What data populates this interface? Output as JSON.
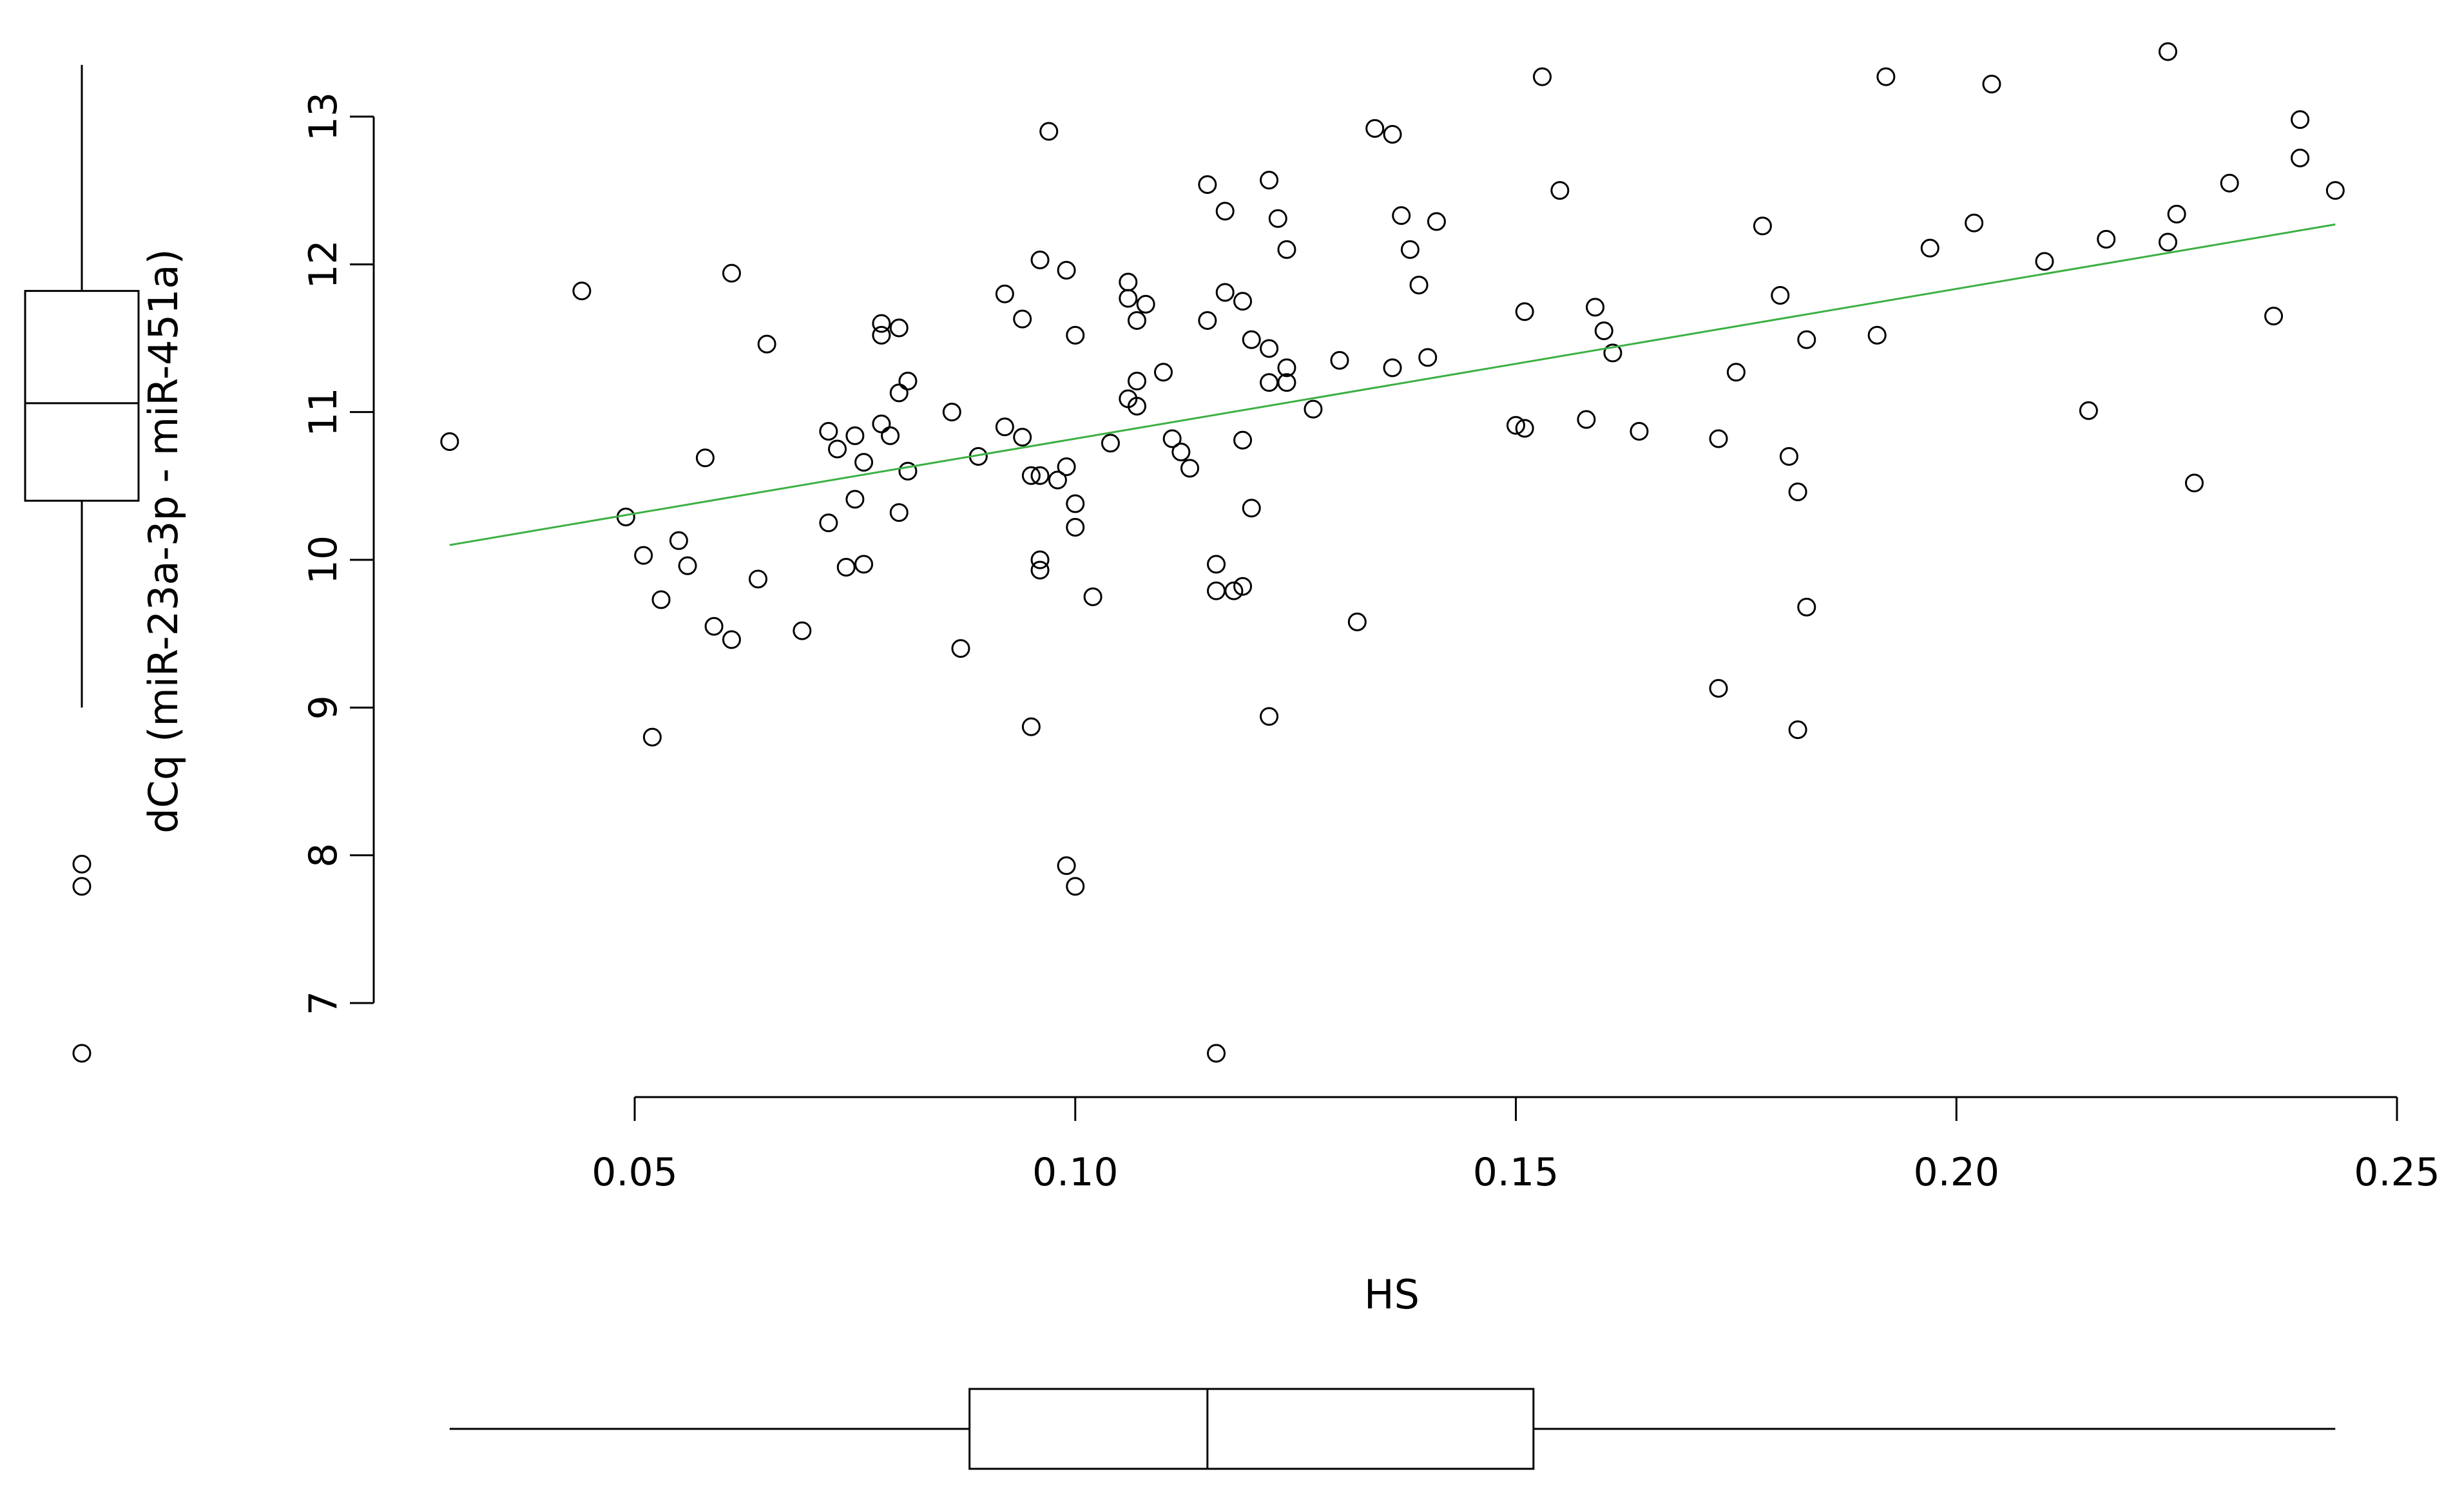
{
  "chart_data": {
    "type": "scatter",
    "xlabel": "HS",
    "ylabel": "dCq (miR-23a-3p - miR-451a)",
    "xlim": [
      0.03,
      0.245
    ],
    "ylim": [
      7,
      13.45
    ],
    "x_ticks": [
      0.05,
      0.1,
      0.15,
      0.2,
      0.25
    ],
    "x_tick_labels": [
      "0.05",
      "0.10",
      "0.15",
      "0.20",
      "0.25"
    ],
    "y_ticks": [
      7,
      8,
      9,
      10,
      11,
      12,
      13
    ],
    "y_tick_labels": [
      "7",
      "8",
      "9",
      "10",
      "11",
      "12",
      "13"
    ],
    "grid": false,
    "colors": {
      "points": "#000000",
      "fit_line": "#3cb043",
      "boxplot": "#000000"
    },
    "fit_line": {
      "x": [
        0.029,
        0.243
      ],
      "y": [
        10.1,
        12.27
      ]
    },
    "points": [
      {
        "x": 0.029,
        "y": 10.8
      },
      {
        "x": 0.044,
        "y": 11.82
      },
      {
        "x": 0.049,
        "y": 10.29
      },
      {
        "x": 0.051,
        "y": 10.03
      },
      {
        "x": 0.052,
        "y": 8.8
      },
      {
        "x": 0.053,
        "y": 9.73
      },
      {
        "x": 0.055,
        "y": 10.13
      },
      {
        "x": 0.056,
        "y": 9.96
      },
      {
        "x": 0.058,
        "y": 10.69
      },
      {
        "x": 0.059,
        "y": 9.55
      },
      {
        "x": 0.061,
        "y": 9.46
      },
      {
        "x": 0.061,
        "y": 11.94
      },
      {
        "x": 0.064,
        "y": 9.87
      },
      {
        "x": 0.065,
        "y": 11.46
      },
      {
        "x": 0.069,
        "y": 9.52
      },
      {
        "x": 0.072,
        "y": 10.87
      },
      {
        "x": 0.072,
        "y": 10.25
      },
      {
        "x": 0.073,
        "y": 10.75
      },
      {
        "x": 0.074,
        "y": 9.95
      },
      {
        "x": 0.075,
        "y": 10.41
      },
      {
        "x": 0.075,
        "y": 10.84
      },
      {
        "x": 0.076,
        "y": 9.97
      },
      {
        "x": 0.076,
        "y": 10.66
      },
      {
        "x": 0.078,
        "y": 10.92
      },
      {
        "x": 0.078,
        "y": 11.52
      },
      {
        "x": 0.078,
        "y": 11.6
      },
      {
        "x": 0.079,
        "y": 10.84
      },
      {
        "x": 0.08,
        "y": 11.13
      },
      {
        "x": 0.08,
        "y": 11.57
      },
      {
        "x": 0.08,
        "y": 10.32
      },
      {
        "x": 0.081,
        "y": 11.21
      },
      {
        "x": 0.081,
        "y": 10.6
      },
      {
        "x": 0.086,
        "y": 11.0
      },
      {
        "x": 0.087,
        "y": 9.4
      },
      {
        "x": 0.089,
        "y": 10.7
      },
      {
        "x": 0.092,
        "y": 11.8
      },
      {
        "x": 0.092,
        "y": 10.9
      },
      {
        "x": 0.094,
        "y": 11.63
      },
      {
        "x": 0.094,
        "y": 10.83
      },
      {
        "x": 0.095,
        "y": 10.57
      },
      {
        "x": 0.095,
        "y": 8.87
      },
      {
        "x": 0.096,
        "y": 10.57
      },
      {
        "x": 0.096,
        "y": 10.0
      },
      {
        "x": 0.096,
        "y": 9.93
      },
      {
        "x": 0.096,
        "y": 12.03
      },
      {
        "x": 0.097,
        "y": 12.9
      },
      {
        "x": 0.098,
        "y": 10.54
      },
      {
        "x": 0.099,
        "y": 10.63
      },
      {
        "x": 0.099,
        "y": 11.96
      },
      {
        "x": 0.099,
        "y": 7.93
      },
      {
        "x": 0.1,
        "y": 7.79
      },
      {
        "x": 0.1,
        "y": 10.38
      },
      {
        "x": 0.1,
        "y": 10.22
      },
      {
        "x": 0.1,
        "y": 11.52
      },
      {
        "x": 0.102,
        "y": 9.75
      },
      {
        "x": 0.104,
        "y": 10.79
      },
      {
        "x": 0.106,
        "y": 11.88
      },
      {
        "x": 0.106,
        "y": 11.77
      },
      {
        "x": 0.106,
        "y": 11.09
      },
      {
        "x": 0.107,
        "y": 11.21
      },
      {
        "x": 0.107,
        "y": 11.62
      },
      {
        "x": 0.107,
        "y": 11.04
      },
      {
        "x": 0.108,
        "y": 11.73
      },
      {
        "x": 0.11,
        "y": 11.27
      },
      {
        "x": 0.111,
        "y": 10.82
      },
      {
        "x": 0.112,
        "y": 10.73
      },
      {
        "x": 0.113,
        "y": 10.62
      },
      {
        "x": 0.115,
        "y": 11.62
      },
      {
        "x": 0.115,
        "y": 12.54
      },
      {
        "x": 0.116,
        "y": 9.97
      },
      {
        "x": 0.116,
        "y": 6.66
      },
      {
        "x": 0.116,
        "y": 9.79
      },
      {
        "x": 0.117,
        "y": 12.36
      },
      {
        "x": 0.117,
        "y": 11.81
      },
      {
        "x": 0.118,
        "y": 9.79
      },
      {
        "x": 0.119,
        "y": 9.82
      },
      {
        "x": 0.119,
        "y": 11.75
      },
      {
        "x": 0.119,
        "y": 10.81
      },
      {
        "x": 0.12,
        "y": 11.49
      },
      {
        "x": 0.12,
        "y": 10.35
      },
      {
        "x": 0.122,
        "y": 11.43
      },
      {
        "x": 0.122,
        "y": 11.2
      },
      {
        "x": 0.122,
        "y": 12.57
      },
      {
        "x": 0.122,
        "y": 8.94
      },
      {
        "x": 0.123,
        "y": 12.31
      },
      {
        "x": 0.124,
        "y": 11.3
      },
      {
        "x": 0.124,
        "y": 11.2
      },
      {
        "x": 0.124,
        "y": 12.1
      },
      {
        "x": 0.127,
        "y": 11.02
      },
      {
        "x": 0.13,
        "y": 11.35
      },
      {
        "x": 0.132,
        "y": 9.58
      },
      {
        "x": 0.134,
        "y": 12.92
      },
      {
        "x": 0.136,
        "y": 12.88
      },
      {
        "x": 0.136,
        "y": 11.3
      },
      {
        "x": 0.137,
        "y": 12.33
      },
      {
        "x": 0.138,
        "y": 12.1
      },
      {
        "x": 0.139,
        "y": 11.86
      },
      {
        "x": 0.14,
        "y": 11.37
      },
      {
        "x": 0.141,
        "y": 12.29
      },
      {
        "x": 0.15,
        "y": 10.91
      },
      {
        "x": 0.151,
        "y": 10.89
      },
      {
        "x": 0.151,
        "y": 11.68
      },
      {
        "x": 0.153,
        "y": 13.27
      },
      {
        "x": 0.155,
        "y": 12.5
      },
      {
        "x": 0.158,
        "y": 10.95
      },
      {
        "x": 0.159,
        "y": 11.71
      },
      {
        "x": 0.16,
        "y": 11.55
      },
      {
        "x": 0.161,
        "y": 11.4
      },
      {
        "x": 0.164,
        "y": 10.87
      },
      {
        "x": 0.173,
        "y": 10.82
      },
      {
        "x": 0.173,
        "y": 9.13
      },
      {
        "x": 0.175,
        "y": 11.27
      },
      {
        "x": 0.178,
        "y": 12.26
      },
      {
        "x": 0.18,
        "y": 11.79
      },
      {
        "x": 0.181,
        "y": 10.7
      },
      {
        "x": 0.182,
        "y": 10.46
      },
      {
        "x": 0.182,
        "y": 8.85
      },
      {
        "x": 0.183,
        "y": 9.68
      },
      {
        "x": 0.183,
        "y": 11.49
      },
      {
        "x": 0.191,
        "y": 11.52
      },
      {
        "x": 0.192,
        "y": 13.27
      },
      {
        "x": 0.197,
        "y": 12.11
      },
      {
        "x": 0.202,
        "y": 12.28
      },
      {
        "x": 0.204,
        "y": 13.22
      },
      {
        "x": 0.21,
        "y": 12.02
      },
      {
        "x": 0.215,
        "y": 11.01
      },
      {
        "x": 0.217,
        "y": 12.17
      },
      {
        "x": 0.224,
        "y": 12.15
      },
      {
        "x": 0.224,
        "y": 13.44
      },
      {
        "x": 0.225,
        "y": 12.34
      },
      {
        "x": 0.227,
        "y": 10.52
      },
      {
        "x": 0.231,
        "y": 12.55
      },
      {
        "x": 0.236,
        "y": 11.65
      },
      {
        "x": 0.239,
        "y": 12.98
      },
      {
        "x": 0.239,
        "y": 12.72
      },
      {
        "x": 0.243,
        "y": 12.5
      }
    ],
    "boxplot_y": {
      "min": 9.0,
      "q1": 10.4,
      "median": 11.06,
      "q3": 11.82,
      "max": 13.35,
      "outliers": [
        7.94,
        7.79,
        6.66
      ]
    },
    "boxplot_x": {
      "min": 0.029,
      "q1": 0.088,
      "median": 0.115,
      "q3": 0.152,
      "max": 0.243
    }
  }
}
